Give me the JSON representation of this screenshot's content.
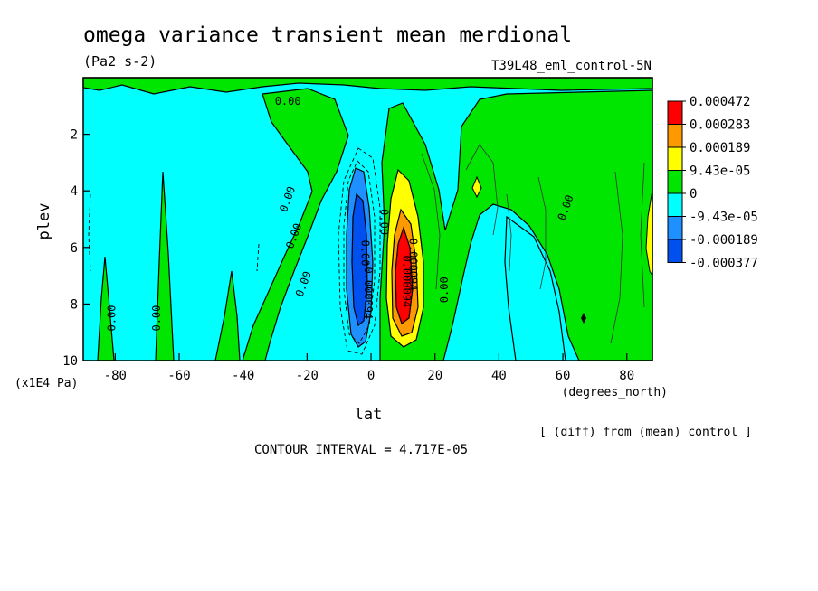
{
  "chart_data": {
    "type": "heatmap",
    "title": "omega variance transient mean merdional",
    "units": "(Pa2 s-2)",
    "dataset": "T39L48_eml_control-5N",
    "xlabel": "lat",
    "xunits": "(degrees_north)",
    "ylabel": "plev",
    "yunits": "(x1E4 Pa)",
    "xlim": [
      -90,
      88
    ],
    "ylim": [
      10,
      0
    ],
    "x_ticks": [
      {
        "v": -80,
        "label": "-80"
      },
      {
        "v": -60,
        "label": "-60"
      },
      {
        "v": -40,
        "label": "-40"
      },
      {
        "v": -20,
        "label": "-20"
      },
      {
        "v": 0,
        "label": "0"
      },
      {
        "v": 20,
        "label": "20"
      },
      {
        "v": 40,
        "label": "40"
      },
      {
        "v": 60,
        "label": "60"
      },
      {
        "v": 80,
        "label": "80"
      }
    ],
    "y_ticks": [
      {
        "v": 2,
        "label": "2"
      },
      {
        "v": 4,
        "label": "4"
      },
      {
        "v": 6,
        "label": "6"
      },
      {
        "v": 8,
        "label": "8"
      },
      {
        "v": 10,
        "label": "10"
      }
    ],
    "contour_interval": "CONTOUR INTERVAL = 4.717E-05",
    "note": "[ (diff) from (mean) control ]",
    "legend": {
      "placement": "right",
      "labels": [
        "0.000472",
        "0.000283",
        "0.000189",
        "9.43e-05",
        "0",
        "-9.43e-05",
        "-0.000189",
        "-0.000377"
      ],
      "colors": [
        "#ff0000",
        "#ff9900",
        "#ffff00",
        "#00e600",
        "#00ffff",
        "#1e90ff",
        "#0050f0"
      ]
    },
    "contour_labels": [
      {
        "text": "0.00",
        "x": -26,
        "y": 0.85,
        "rot": 0
      },
      {
        "text": "0.00",
        "x": -26,
        "y": 4.3,
        "rot": -70
      },
      {
        "text": "0.00",
        "x": -24,
        "y": 5.6,
        "rot": -70
      },
      {
        "text": "0.00",
        "x": -21,
        "y": 7.3,
        "rot": -70
      },
      {
        "text": "0.00",
        "x": -81,
        "y": 8.5,
        "rot": -90
      },
      {
        "text": "0.00",
        "x": -67,
        "y": 8.5,
        "rot": -90
      },
      {
        "text": "0.00",
        "x": 4,
        "y": 5.1,
        "rot": 90
      },
      {
        "text": "0.00",
        "x": -2,
        "y": 6.2,
        "rot": 90
      },
      {
        "text": "-0.000094",
        "x": -1,
        "y": 7.5,
        "rot": 90
      },
      {
        "text": "0.000094",
        "x": 13,
        "y": 6.6,
        "rot": 90
      },
      {
        "text": "0.000094",
        "x": 11,
        "y": 7.2,
        "rot": 90
      },
      {
        "text": "0.00",
        "x": 23,
        "y": 7.5,
        "rot": -90
      },
      {
        "text": "0.00",
        "x": 61,
        "y": 4.6,
        "rot": -70
      }
    ]
  },
  "colors": {
    "background": "#ffffff",
    "red": "#ff0000",
    "orange": "#ff9900",
    "yellow": "#ffff00",
    "green": "#00e600",
    "cyan": "#00ffff",
    "blue_light": "#1e90ff",
    "blue_dark": "#0050f0"
  }
}
